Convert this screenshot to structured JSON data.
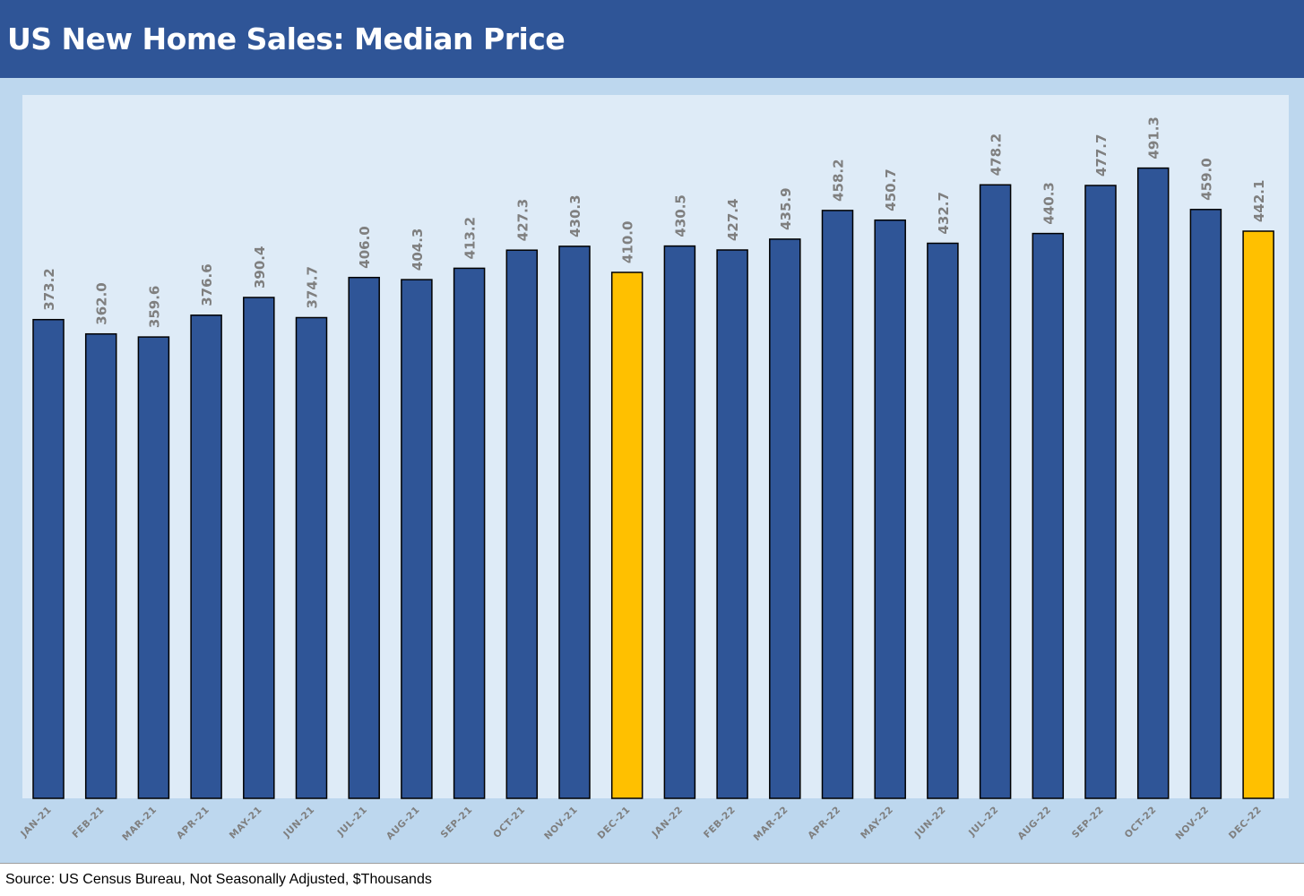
{
  "header": {
    "title": "US New Home Sales: Median Price"
  },
  "footer": {
    "source": "Source: US Census Bureau, Not Seasonally Adjusted, $Thousands"
  },
  "chart_data": {
    "type": "bar",
    "title": "US New Home Sales: Median Price",
    "xlabel": "",
    "ylabel": "",
    "ylim": [
      0,
      530
    ],
    "grid": false,
    "legend": "none",
    "categories": [
      "JAN-21",
      "FEB-21",
      "MAR-21",
      "APR-21",
      "MAY-21",
      "JUN-21",
      "JUL-21",
      "AUG-21",
      "SEP-21",
      "OCT-21",
      "NOV-21",
      "DEC-21",
      "JAN-22",
      "FEB-22",
      "MAR-22",
      "APR-22",
      "MAY-22",
      "JUN-22",
      "JUL-22",
      "AUG-22",
      "SEP-22",
      "OCT-22",
      "NOV-22",
      "DEC-22"
    ],
    "values": [
      373.2,
      362.0,
      359.6,
      376.6,
      390.4,
      374.7,
      406.0,
      404.3,
      413.2,
      427.3,
      430.3,
      410.0,
      430.5,
      427.4,
      435.9,
      458.2,
      450.7,
      432.7,
      478.2,
      440.3,
      477.7,
      491.3,
      459.0,
      442.1
    ],
    "data_labels": [
      "373.2",
      "362.0",
      "359.6",
      "376.6",
      "390.4",
      "374.7",
      "406.0",
      "404.3",
      "413.2",
      "427.3",
      "430.3",
      "410.0",
      "430.5",
      "427.4",
      "435.9",
      "458.2",
      "450.7",
      "432.7",
      "478.2",
      "440.3",
      "477.7",
      "491.3",
      "459.0",
      "442.1"
    ],
    "colors": {
      "default_bar": "#2f5597",
      "highlight_bar": "#ffc000",
      "bar_outline": "#000000",
      "data_label": "#7f7f7f",
      "tick_label": "#7f7f7f",
      "header_bg": "#2f5597",
      "outer_bg": "#bdd7ee",
      "plot_bg": "#deebf7"
    },
    "highlight_categories": [
      "DEC-21",
      "DEC-22"
    ]
  }
}
